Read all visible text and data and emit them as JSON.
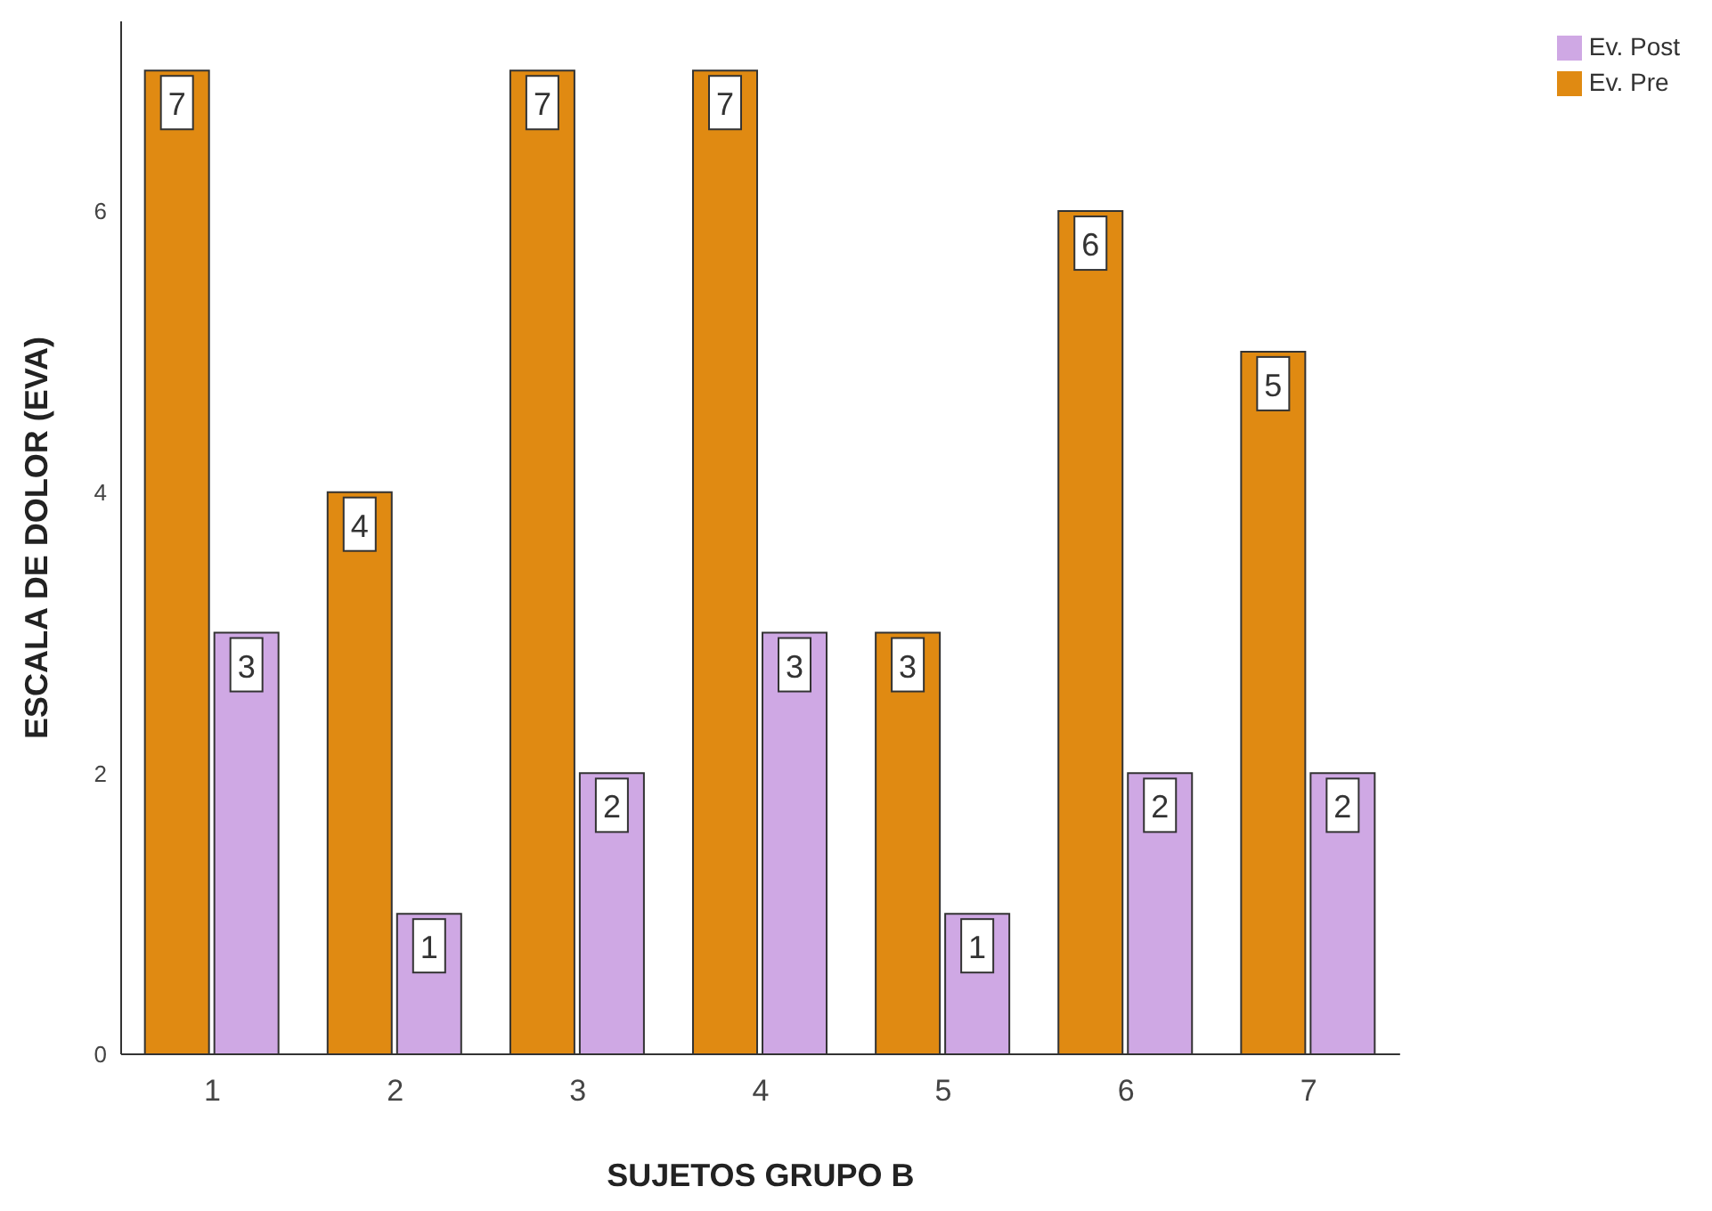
{
  "chart_data": {
    "type": "bar",
    "xlabel": "SUJETOS GRUPO B",
    "ylabel": "ESCALA DE DOLOR (EVA)",
    "categories": [
      "1",
      "2",
      "3",
      "4",
      "5",
      "6",
      "7"
    ],
    "series": [
      {
        "name": "Ev. Pre",
        "color": "#e08a12",
        "values": [
          7,
          4,
          7,
          7,
          3,
          6,
          5
        ]
      },
      {
        "name": "Ev. Post",
        "color": "#cfa8e4",
        "values": [
          3,
          1,
          2,
          3,
          1,
          2,
          2
        ]
      }
    ],
    "ylim": [
      0,
      7.35
    ],
    "yticks": [
      0,
      2,
      4,
      6
    ],
    "grid": false,
    "legend": "top right",
    "data_labels": true
  }
}
